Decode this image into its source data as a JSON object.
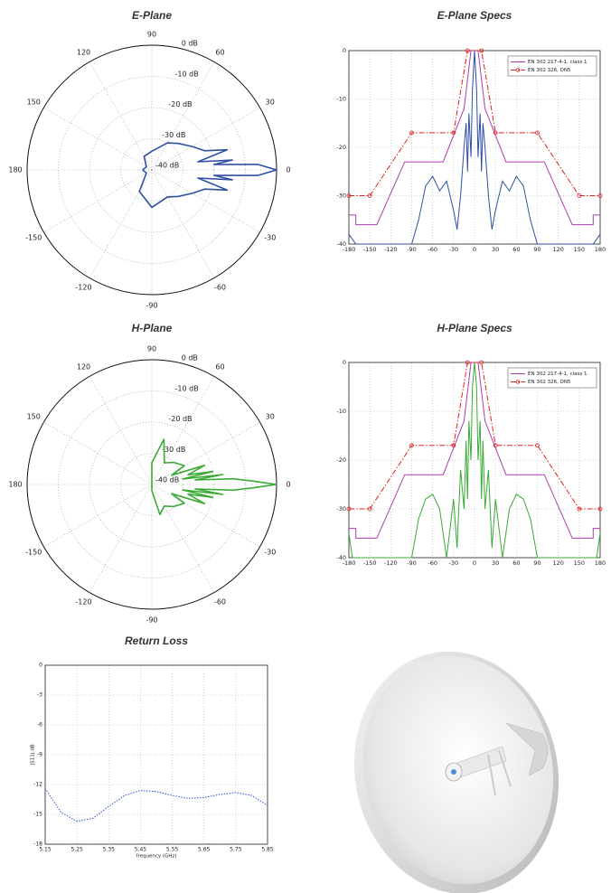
{
  "chart_data": [
    {
      "type": "polar",
      "title": "E-Plane",
      "rlim": [
        -40,
        0
      ],
      "rticks": [
        {
          "value": 0,
          "label": "0 dB"
        },
        {
          "value": -10,
          "label": "-10 dB"
        },
        {
          "value": -20,
          "label": "-20 dB"
        },
        {
          "value": -30,
          "label": "-30 dB"
        },
        {
          "value": -40,
          "label": "-40 dB"
        }
      ],
      "thetaticks": [
        0,
        30,
        60,
        90,
        120,
        150,
        180,
        -150,
        -120,
        -90,
        -60,
        -30
      ],
      "grid": true,
      "series": [
        {
          "color": "#2f4fa3",
          "x": [
            -180,
            -150,
            -120,
            -90,
            -60,
            -45,
            -30,
            -20,
            -15,
            -10,
            -7,
            -5,
            -3,
            0,
            3,
            5,
            7,
            10,
            15,
            20,
            30,
            45,
            60,
            90,
            120,
            150,
            180
          ],
          "values": [
            -37,
            -38,
            -32,
            -28,
            -30,
            -28,
            -25,
            -22,
            -15,
            -25,
            -14,
            -20,
            -6,
            0,
            -6,
            -20,
            -14,
            -25,
            -15,
            -22,
            -25,
            -28,
            -30,
            -34,
            -35,
            -38,
            -37
          ]
        }
      ]
    },
    {
      "type": "line",
      "title": "E-Plane Specs",
      "xlim": [
        -180,
        180
      ],
      "ylim": [
        -40,
        0
      ],
      "xticks": [
        -180,
        -150,
        -120,
        -90,
        -60,
        -30,
        0,
        30,
        60,
        90,
        120,
        150,
        180
      ],
      "yticks": [
        -40,
        -30,
        -20,
        -10,
        0
      ],
      "grid": true,
      "legend": "upper right",
      "series": [
        {
          "color": "#2f4fa3",
          "linestyle": "solid",
          "x": [
            -180,
            -170,
            -150,
            -120,
            -90,
            -80,
            -70,
            -60,
            -50,
            -40,
            -30,
            -25,
            -20,
            -15,
            -12,
            -10,
            -8,
            -5,
            -3,
            0,
            3,
            5,
            8,
            10,
            12,
            15,
            20,
            25,
            30,
            40,
            50,
            60,
            70,
            80,
            90,
            120,
            150,
            170,
            180
          ],
          "values": [
            -38,
            -40,
            -40,
            -40,
            -40,
            -35,
            -28,
            -26,
            -29,
            -27,
            -33,
            -37,
            -30,
            -20,
            -15,
            -25,
            -13,
            -22,
            -8,
            0,
            -8,
            -22,
            -13,
            -25,
            -15,
            -20,
            -30,
            -37,
            -33,
            -27,
            -29,
            -26,
            -28,
            -35,
            -40,
            -40,
            -40,
            -40,
            -38
          ]
        },
        {
          "name": "EN 302 217-4-1, class 1",
          "color": "#b03cb0",
          "linestyle": "solid",
          "x": [
            -180,
            -170,
            -170,
            -140,
            -100,
            -45,
            -15,
            -5,
            5,
            15,
            45,
            100,
            140,
            170,
            170,
            180
          ],
          "values": [
            -34,
            -34,
            -36,
            -36,
            -23,
            -23,
            -12,
            0,
            0,
            -12,
            -23,
            -23,
            -36,
            -36,
            -34,
            -34
          ]
        },
        {
          "name": "EN 302 326, DN5",
          "color": "#e02020",
          "linestyle": "dashdot",
          "marker": "o",
          "x": [
            -180,
            -150,
            -90,
            -30,
            -10,
            10,
            30,
            90,
            150,
            180
          ],
          "values": [
            -30,
            -30,
            -17,
            -17,
            0,
            0,
            -17,
            -17,
            -30,
            -30
          ]
        }
      ]
    },
    {
      "type": "polar",
      "title": "H-Plane",
      "rlim": [
        -40,
        0
      ],
      "rticks": [
        {
          "value": 0,
          "label": "0 dB"
        },
        {
          "value": -10,
          "label": "-10 dB"
        },
        {
          "value": -20,
          "label": "-20 dB"
        },
        {
          "value": -30,
          "label": "-30 dB"
        },
        {
          "value": -40,
          "label": "-40 dB"
        }
      ],
      "thetaticks": [
        0,
        30,
        60,
        90,
        120,
        150,
        180,
        -150,
        -120,
        -90,
        -60,
        -30
      ],
      "grid": true,
      "series": [
        {
          "color": "#3aaa35",
          "x": [
            -180,
            -150,
            -120,
            -90,
            -75,
            -60,
            -45,
            -30,
            -25,
            -20,
            -15,
            -12,
            -10,
            -8,
            -6,
            -4,
            -2,
            0,
            2,
            4,
            6,
            8,
            10,
            12,
            15,
            20,
            25,
            30,
            45,
            60,
            75,
            90,
            120,
            150,
            180
          ],
          "values": [
            -40,
            -40,
            -40,
            -38,
            -30,
            -32,
            -30,
            -28,
            -33,
            -22,
            -28,
            -20,
            -30,
            -17,
            -26,
            -14,
            -8,
            0,
            -8,
            -14,
            -26,
            -17,
            -30,
            -20,
            -28,
            -22,
            -33,
            -28,
            -30,
            -32,
            -25,
            -33,
            -40,
            -40,
            -40
          ]
        }
      ]
    },
    {
      "type": "line",
      "title": "H-Plane Specs",
      "xlim": [
        -180,
        180
      ],
      "ylim": [
        -40,
        0
      ],
      "xticks": [
        -180,
        -150,
        -120,
        -90,
        -60,
        -30,
        0,
        30,
        60,
        90,
        120,
        150,
        180
      ],
      "yticks": [
        -40,
        -30,
        -20,
        -10,
        0
      ],
      "grid": true,
      "legend": "upper right",
      "series": [
        {
          "color": "#3aaa35",
          "linestyle": "solid",
          "x": [
            -180,
            -175,
            -170,
            -150,
            -120,
            -90,
            -80,
            -70,
            -60,
            -50,
            -40,
            -30,
            -25,
            -20,
            -15,
            -12,
            -10,
            -8,
            -5,
            -3,
            0,
            3,
            5,
            8,
            10,
            12,
            15,
            20,
            25,
            30,
            40,
            50,
            60,
            70,
            80,
            90,
            120,
            150,
            170,
            175,
            180
          ],
          "values": [
            -35,
            -40,
            -40,
            -40,
            -40,
            -40,
            -32,
            -28,
            -27,
            -30,
            -40,
            -28,
            -38,
            -22,
            -30,
            -16,
            -28,
            -12,
            -20,
            -5,
            0,
            -5,
            -20,
            -12,
            -28,
            -16,
            -30,
            -22,
            -38,
            -28,
            -40,
            -30,
            -27,
            -28,
            -32,
            -40,
            -40,
            -40,
            -40,
            -40,
            -35
          ]
        },
        {
          "name": "EN 302 217-4-1, class 1",
          "color": "#b03cb0",
          "linestyle": "solid",
          "x": [
            -180,
            -170,
            -170,
            -140,
            -100,
            -45,
            -15,
            -5,
            5,
            15,
            45,
            100,
            140,
            170,
            170,
            180
          ],
          "values": [
            -34,
            -34,
            -36,
            -36,
            -23,
            -23,
            -12,
            0,
            0,
            -12,
            -23,
            -23,
            -36,
            -36,
            -34,
            -34
          ]
        },
        {
          "name": "EN 302 326, DN5",
          "color": "#e02020",
          "linestyle": "dashdot",
          "marker": "o",
          "x": [
            -180,
            -150,
            -90,
            -30,
            -10,
            10,
            30,
            90,
            150,
            180
          ],
          "values": [
            -30,
            -30,
            -17,
            -17,
            0,
            0,
            -17,
            -17,
            -30,
            -30
          ]
        }
      ]
    },
    {
      "type": "line",
      "title": "Return Loss",
      "xlabel": "frequency (GHz)",
      "ylabel": "|S11| dB",
      "xlim": [
        5.15,
        5.85
      ],
      "ylim": [
        -18,
        0
      ],
      "xticks": [
        5.15,
        5.25,
        5.35,
        5.45,
        5.55,
        5.65,
        5.75,
        5.85
      ],
      "yticks": [
        -18,
        -15,
        -12,
        -9,
        -6,
        -3,
        0
      ],
      "grid": true,
      "series": [
        {
          "color": "#2f4fd0",
          "linestyle": "dotted",
          "x": [
            5.15,
            5.2,
            5.25,
            5.3,
            5.35,
            5.4,
            5.45,
            5.5,
            5.55,
            5.6,
            5.65,
            5.7,
            5.75,
            5.8,
            5.85
          ],
          "values": [
            -12.4,
            -14.8,
            -15.7,
            -15.4,
            -14.2,
            -13.1,
            -12.6,
            -12.7,
            -13.1,
            -13.4,
            -13.3,
            -13.0,
            -12.8,
            -13.1,
            -14.1
          ]
        }
      ]
    }
  ]
}
